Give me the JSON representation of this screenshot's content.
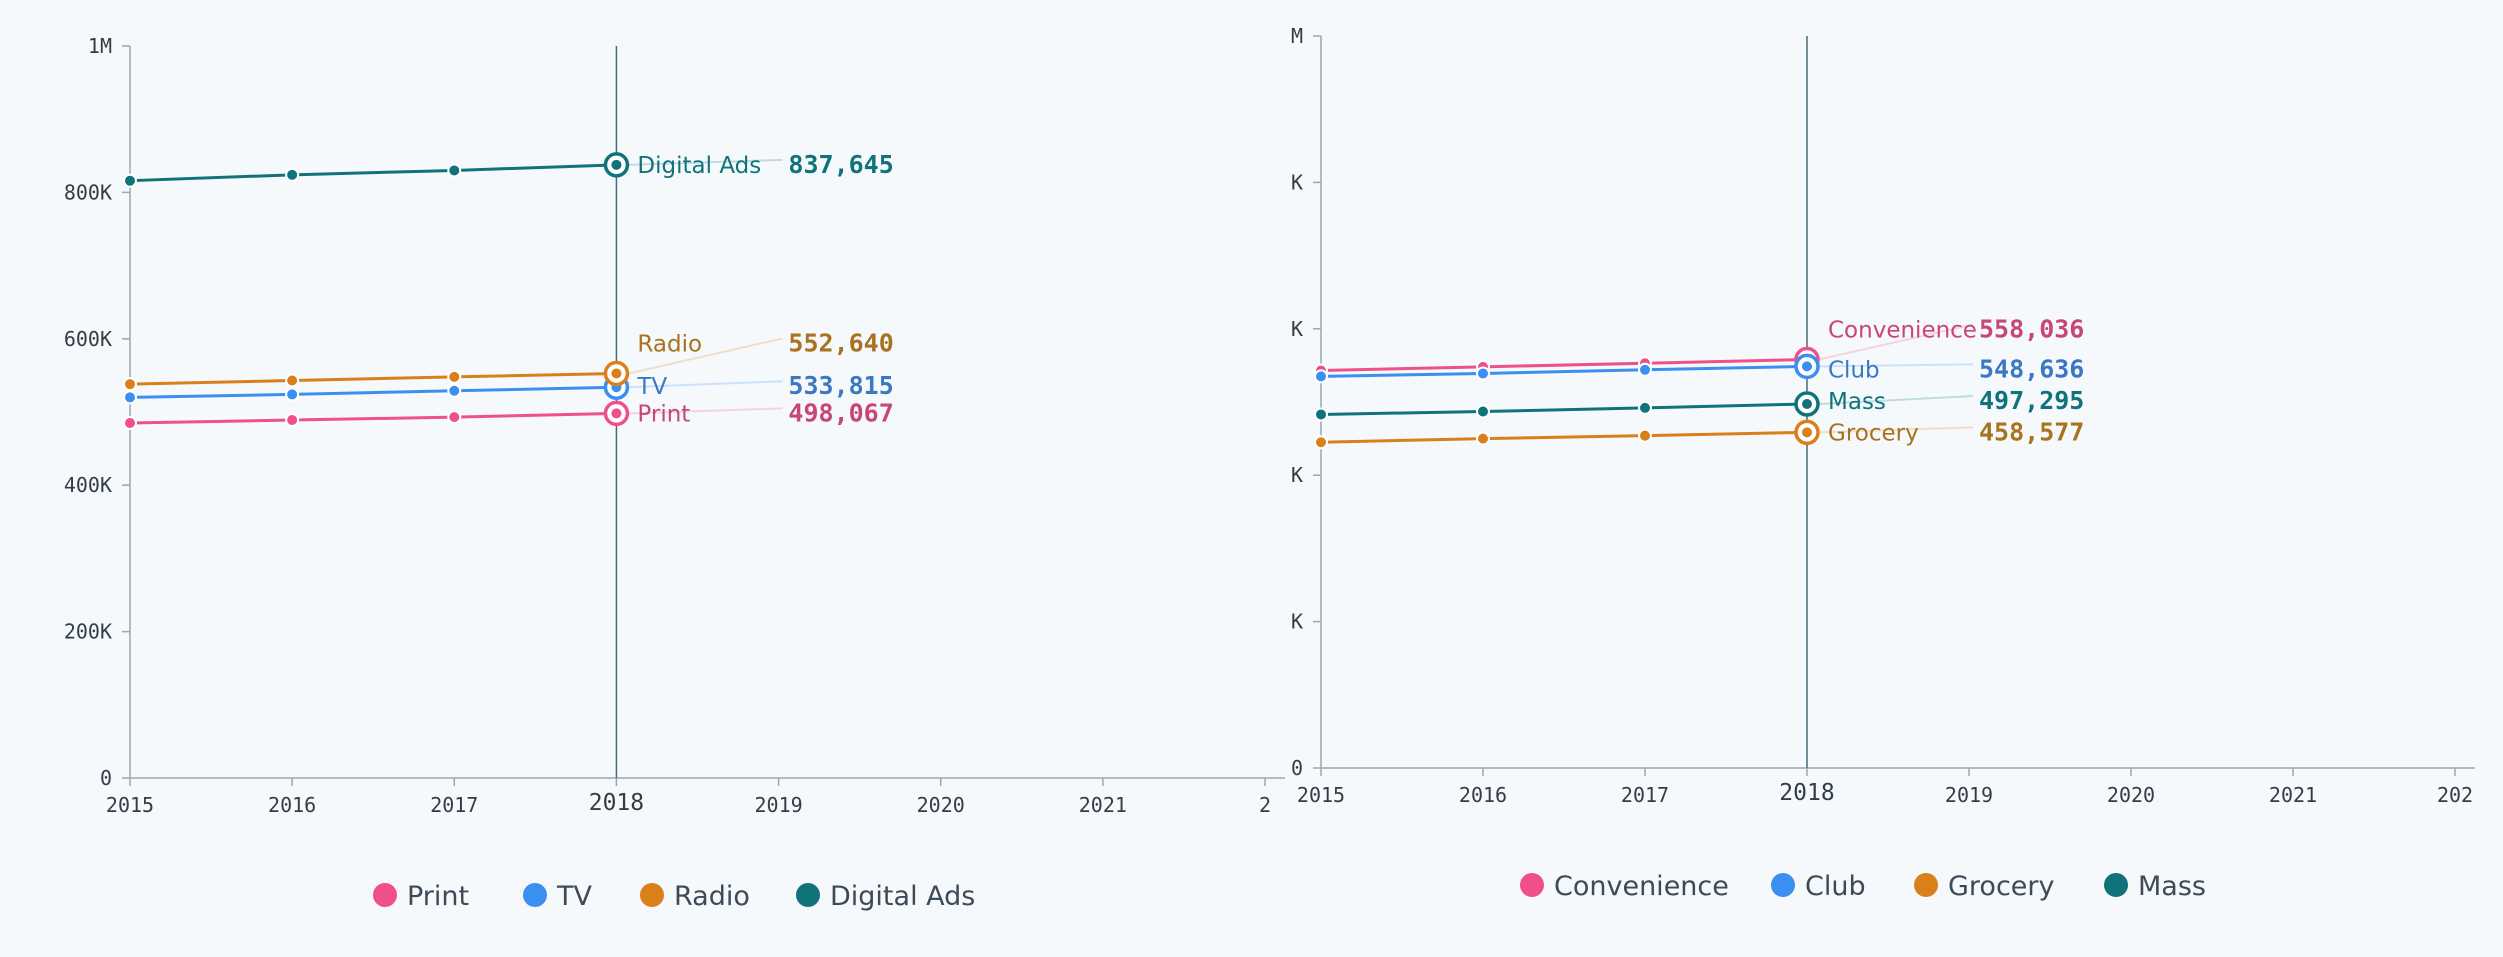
{
  "chart_data": [
    {
      "type": "line",
      "x": [
        2015,
        2016,
        2017,
        2018
      ],
      "xticks": [
        "2015",
        "2016",
        "2017",
        "2018",
        "2019",
        "2020",
        "2021",
        "2"
      ],
      "current_x": 2018,
      "yticks": [
        {
          "value": 0,
          "label": "0"
        },
        {
          "value": 200000,
          "label": "200K"
        },
        {
          "value": 400000,
          "label": "400K"
        },
        {
          "value": 600000,
          "label": "600K"
        },
        {
          "value": 800000,
          "label": "800K"
        },
        {
          "value": 1000000,
          "label": "1M"
        }
      ],
      "xlim": [
        2015,
        2022
      ],
      "ylim": [
        0,
        1000000
      ],
      "legend": "bottom",
      "series": [
        {
          "name": "Print",
          "color": "#f0508a",
          "text_color": "#c8457a",
          "values": [
            485000,
            489000,
            493000,
            498067
          ],
          "value_label": "498,067"
        },
        {
          "name": "TV",
          "color": "#3b8ff0",
          "text_color": "#3a78c2",
          "values": [
            520000,
            524000,
            529000,
            533815
          ],
          "value_label": "533,815"
        },
        {
          "name": "Radio",
          "color": "#d9801a",
          "text_color": "#a8731e",
          "values": [
            538000,
            543000,
            548000,
            552640
          ],
          "value_label": "552,640"
        },
        {
          "name": "Digital Ads",
          "color": "#10737a",
          "text_color": "#10737a",
          "values": [
            816000,
            824000,
            830000,
            837645
          ],
          "value_label": "837,645"
        }
      ]
    },
    {
      "type": "line",
      "x": [
        2015,
        2016,
        2017,
        2018
      ],
      "xticks": [
        "2015",
        "2016",
        "2017",
        "2018",
        "2019",
        "2020",
        "2021",
        "202"
      ],
      "current_x": 2018,
      "yticks": [
        {
          "value": 0,
          "label": "0"
        },
        {
          "value": 200000,
          "label": "K"
        },
        {
          "value": 400000,
          "label": "K"
        },
        {
          "value": 600000,
          "label": "K"
        },
        {
          "value": 800000,
          "label": "K"
        },
        {
          "value": 1000000,
          "label": "M"
        }
      ],
      "xlim": [
        2015,
        2022
      ],
      "ylim": [
        0,
        1000000
      ],
      "legend": "bottom",
      "series": [
        {
          "name": "Convenience",
          "color": "#f0508a",
          "text_color": "#c8457a",
          "values": [
            543000,
            548000,
            553000,
            558036
          ],
          "value_label": "558,036"
        },
        {
          "name": "Club",
          "color": "#3b8ff0",
          "text_color": "#3a78c2",
          "values": [
            535000,
            539000,
            544000,
            548636
          ],
          "value_label": "548,636"
        },
        {
          "name": "Grocery",
          "color": "#d9801a",
          "text_color": "#a8731e",
          "values": [
            445000,
            450000,
            454000,
            458577
          ],
          "value_label": "458,577"
        },
        {
          "name": "Mass",
          "color": "#10737a",
          "text_color": "#10737a",
          "values": [
            483000,
            487000,
            492000,
            497295
          ],
          "value_label": "497,295"
        }
      ]
    }
  ]
}
